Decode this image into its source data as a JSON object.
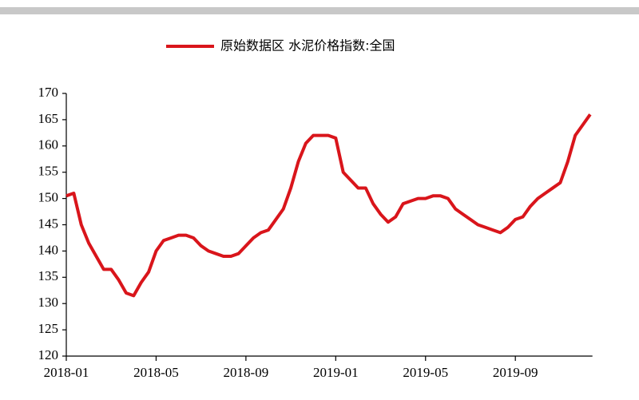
{
  "chart_data": {
    "type": "line",
    "categories": [
      "2018-01",
      null,
      null,
      null,
      null,
      null,
      null,
      null,
      null,
      null,
      null,
      null,
      "2018-05",
      null,
      null,
      null,
      null,
      null,
      null,
      null,
      null,
      null,
      null,
      null,
      "2018-09",
      null,
      null,
      null,
      null,
      null,
      null,
      null,
      null,
      null,
      null,
      null,
      "2019-01",
      null,
      null,
      null,
      null,
      null,
      null,
      null,
      null,
      null,
      null,
      null,
      "2019-05",
      null,
      null,
      null,
      null,
      null,
      null,
      null,
      null,
      null,
      null,
      null,
      "2019-09",
      null,
      null,
      null,
      null,
      null,
      null,
      null,
      null,
      null,
      null
    ],
    "series": [
      {
        "name": "原始数据区 水泥价格指数:全国",
        "color": "#d9151b",
        "values": [
          150.5,
          151,
          145,
          141.5,
          139,
          136.5,
          136.5,
          134.5,
          132,
          131.5,
          134,
          136,
          140,
          142,
          142.5,
          143,
          143,
          142.5,
          141,
          140,
          139.5,
          139,
          139,
          139.5,
          141,
          142.5,
          143.5,
          144,
          146,
          148,
          152,
          157,
          160.5,
          162,
          162,
          162,
          161.5,
          155,
          153.5,
          152,
          152,
          149,
          147,
          145.5,
          146.5,
          149,
          149.5,
          150,
          150,
          150.5,
          150.5,
          150,
          148,
          147,
          146,
          145,
          144.5,
          144,
          143.5,
          144.5,
          146,
          146.5,
          148.5,
          150,
          151,
          152,
          153,
          157,
          162,
          164,
          166
        ]
      }
    ],
    "ylim": [
      120,
      170
    ],
    "yticks": [
      120,
      125,
      130,
      135,
      140,
      145,
      150,
      155,
      160,
      165,
      170
    ],
    "legend": "top"
  }
}
